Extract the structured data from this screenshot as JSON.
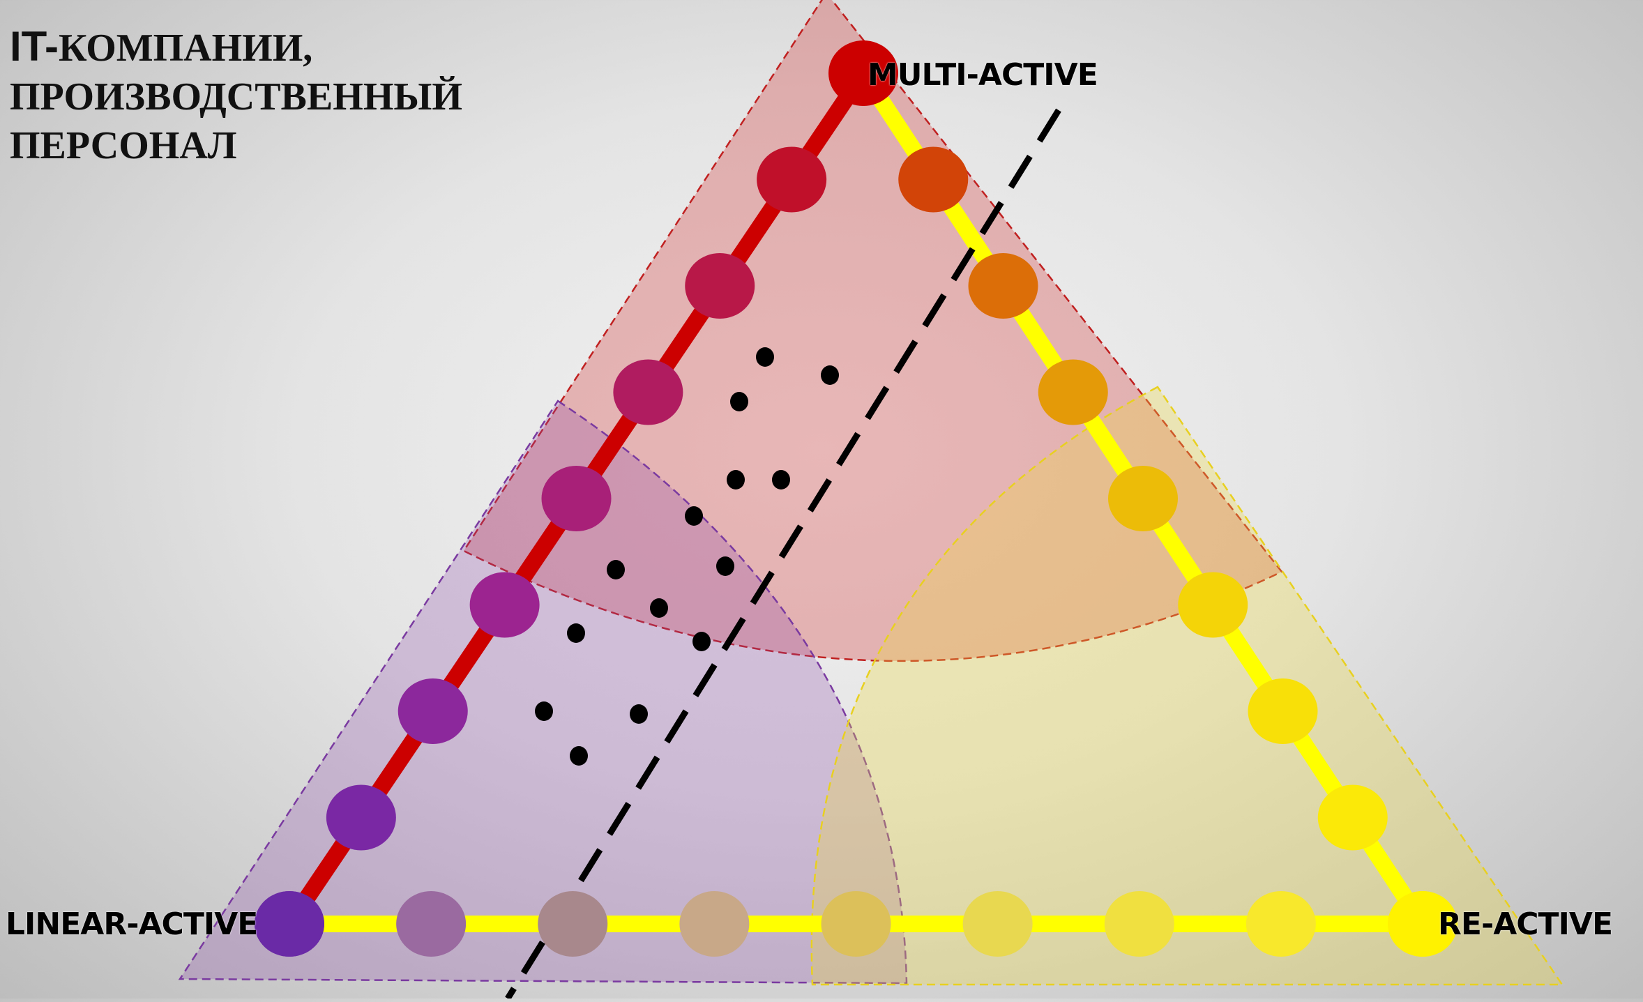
{
  "title": {
    "prefix": "IT-",
    "line1_rest": "КОМПАНИИ,",
    "line2": "ПРОИЗВОДСТВЕННЫЙ",
    "line3": "ПЕРСОНАЛ"
  },
  "vertices": {
    "top": "MULTI-ACTIVE",
    "left": "LINEAR-ACTIVE",
    "right": "RE-ACTIVE"
  },
  "colors": {
    "multi_zone": "#d23c3c",
    "linear_zone": "#8c46aa",
    "re_zone": "#f0dc3c",
    "left_edge": "#cc0000",
    "base_edge": "#ffff00",
    "right_edge": "#ffff00"
  },
  "edge_dot_colors": {
    "left": [
      "#cc0000",
      "#c0102a",
      "#b81848",
      "#b01c60",
      "#a82078",
      "#9c2490",
      "#8c289c",
      "#7a28a4",
      "#6a2aa6"
    ],
    "right": [
      "#cc0000",
      "#d24408",
      "#dc6e08",
      "#e49a08",
      "#ecbc08",
      "#f4d408",
      "#f8e008",
      "#fbe908",
      "#fff200"
    ],
    "base": [
      "#6a2aa6",
      "#9a6aa0",
      "#a8888c",
      "#c8a888",
      "#dcc05a",
      "#e8d850",
      "#f0e040",
      "#f8e82c",
      "#fff200"
    ]
  }
}
